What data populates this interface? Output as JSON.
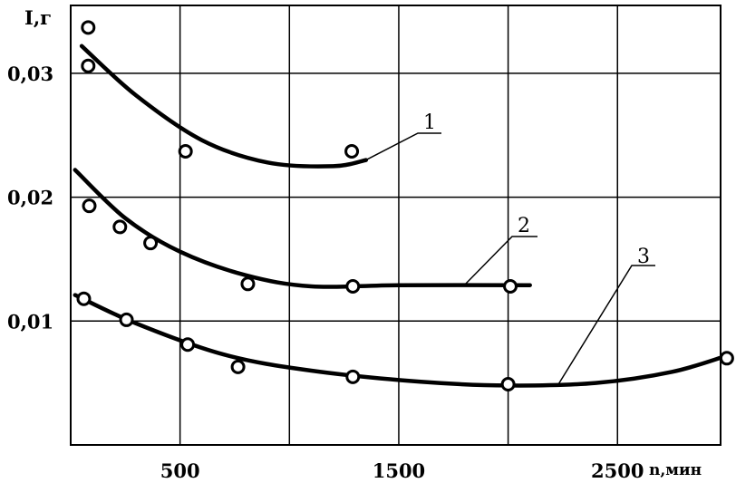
{
  "chart_data": {
    "type": "line",
    "xlabel": "n,мин",
    "ylabel": "I,г",
    "xlim": [
      0,
      3000
    ],
    "ylim": [
      0,
      0.035
    ],
    "x_gridlines": [
      500,
      1000,
      1500,
      2000,
      2500
    ],
    "y_gridlines": [
      0.01,
      0.02,
      0.03
    ],
    "x_ticks": [
      {
        "value": 500,
        "label": "500"
      },
      {
        "value": 1500,
        "label": "1500"
      },
      {
        "value": 2500,
        "label": "2500"
      }
    ],
    "y_ticks": [
      {
        "value": 0.01,
        "label": "0,01"
      },
      {
        "value": 0.02,
        "label": "0,02"
      },
      {
        "value": 0.03,
        "label": "0,03"
      }
    ],
    "grid": true,
    "series": [
      {
        "name": "1",
        "points": [
          {
            "x": 80,
            "y": 0.0337
          },
          {
            "x": 80,
            "y": 0.0306
          },
          {
            "x": 525,
            "y": 0.0237
          },
          {
            "x": 1285,
            "y": 0.0237
          }
        ],
        "curve": [
          {
            "x": 50,
            "y": 0.0322
          },
          {
            "x": 300,
            "y": 0.0282
          },
          {
            "x": 600,
            "y": 0.0246
          },
          {
            "x": 900,
            "y": 0.0228
          },
          {
            "x": 1200,
            "y": 0.0225
          },
          {
            "x": 1350,
            "y": 0.023
          }
        ]
      },
      {
        "name": "2",
        "points": [
          {
            "x": 85,
            "y": 0.0193
          },
          {
            "x": 225,
            "y": 0.0176
          },
          {
            "x": 365,
            "y": 0.0163
          },
          {
            "x": 810,
            "y": 0.013
          },
          {
            "x": 1290,
            "y": 0.0128
          },
          {
            "x": 2010,
            "y": 0.0128
          }
        ],
        "curve": [
          {
            "x": 20,
            "y": 0.0222
          },
          {
            "x": 250,
            "y": 0.0183
          },
          {
            "x": 500,
            "y": 0.0156
          },
          {
            "x": 800,
            "y": 0.0137
          },
          {
            "x": 1100,
            "y": 0.0128
          },
          {
            "x": 1500,
            "y": 0.0129
          },
          {
            "x": 2100,
            "y": 0.0129
          }
        ]
      },
      {
        "name": "3",
        "points": [
          {
            "x": 60,
            "y": 0.0118
          },
          {
            "x": 255,
            "y": 0.0101
          },
          {
            "x": 535,
            "y": 0.0081
          },
          {
            "x": 765,
            "y": 0.0063
          },
          {
            "x": 1290,
            "y": 0.0055
          },
          {
            "x": 2000,
            "y": 0.0049
          },
          {
            "x": 3000,
            "y": 0.007
          }
        ],
        "curve": [
          {
            "x": 20,
            "y": 0.0121
          },
          {
            "x": 300,
            "y": 0.0098
          },
          {
            "x": 700,
            "y": 0.0073
          },
          {
            "x": 1100,
            "y": 0.006
          },
          {
            "x": 1600,
            "y": 0.0051
          },
          {
            "x": 2000,
            "y": 0.0048
          },
          {
            "x": 2400,
            "y": 0.005
          },
          {
            "x": 2750,
            "y": 0.0059
          },
          {
            "x": 3000,
            "y": 0.0072
          }
        ]
      }
    ]
  }
}
